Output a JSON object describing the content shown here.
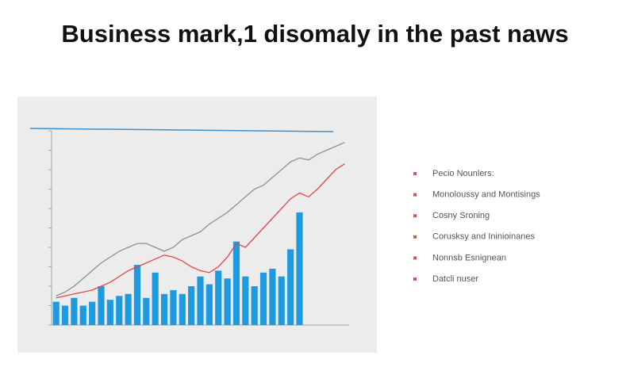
{
  "title": "Business mark,1 disomaly in the past naws",
  "bullets": [
    "Pecio Nounlers:",
    "Monoloussy and Montisings",
    "Cosny Sroning",
    "Corusksy and Ininioinanes",
    "Nonnsb Esnignean",
    "Datcli nuser"
  ],
  "chart_data": {
    "type": "bar",
    "categories": [
      null,
      null,
      null,
      null,
      null,
      null,
      null,
      null,
      null,
      null,
      null,
      null,
      null,
      null,
      null,
      null,
      null,
      null,
      null,
      null,
      null,
      null,
      null,
      null,
      null,
      null,
      null,
      null,
      null,
      null,
      null,
      null,
      null
    ],
    "series": [
      {
        "color": "#1e9be0",
        "values": [
          12,
          10,
          14,
          10,
          12,
          20,
          13,
          15,
          16,
          31,
          14,
          27,
          16,
          18,
          16,
          20,
          25,
          21,
          28,
          24,
          43,
          25,
          20,
          27,
          29,
          25,
          39,
          58,
          null,
          null,
          null,
          null,
          null
        ]
      },
      {
        "type": "line",
        "color": "#e0474c",
        "values": [
          14,
          15,
          16,
          17,
          18,
          20,
          22,
          25,
          28,
          30,
          32,
          34,
          36,
          35,
          33,
          30,
          28,
          27,
          30,
          35,
          42,
          40,
          45,
          50,
          55,
          60,
          65,
          68,
          66,
          70,
          75,
          80,
          83
        ]
      },
      {
        "type": "line",
        "color": "#8a8f99",
        "values": [
          15,
          17,
          20,
          24,
          28,
          32,
          35,
          38,
          40,
          42,
          42,
          40,
          38,
          40,
          44,
          46,
          48,
          52,
          55,
          58,
          62,
          66,
          70,
          72,
          76,
          80,
          84,
          86,
          85,
          88,
          90,
          92,
          94
        ]
      }
    ],
    "ylim": [
      0,
      100
    ],
    "yticks": [
      0,
      10,
      20,
      30,
      40,
      50,
      60,
      70,
      80,
      90,
      100
    ],
    "grid": false
  }
}
